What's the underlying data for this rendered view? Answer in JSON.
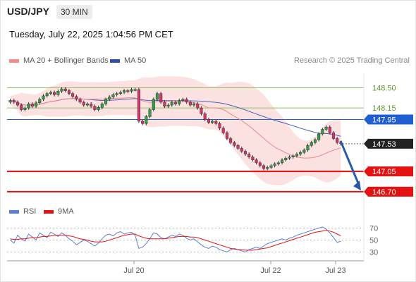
{
  "header": {
    "symbol": "USD/JPY",
    "timeframe": "30 MIN",
    "datetime": "Tuesday, July 22, 2025 1:04:56 PM CET"
  },
  "legend": {
    "ma20_label": "MA 20 + Bollinger Bands",
    "ma50_label": "MA 50",
    "rsi_label": "RSI",
    "rsi_ma_label": "9MA",
    "credit": "Research © 2025 Trading Central"
  },
  "colors": {
    "up": "#2f9e44",
    "down": "#d6336c",
    "candle": "#333333",
    "ma20": "#e88a8a",
    "band_fill": "#fbd7d7",
    "ma50": "#4a62b8",
    "pivot_blue": "#1f5fd1",
    "support_red": "#e51212",
    "resistance_green": "#8cc264",
    "rsi": "#5b7fd6",
    "rsi_ma": "#e51212",
    "arrow": "#2a5aa8"
  },
  "chart_data": [
    {
      "type": "candlestick",
      "y_axis_position": "right",
      "ylim": [
        146.6,
        148.75
      ],
      "x_tick_labels": [
        "Jul 20",
        "Jul 22",
        "Jul 23"
      ],
      "close_values": [
        148.28,
        148.25,
        148.2,
        148.12,
        148.15,
        148.22,
        148.18,
        148.24,
        148.3,
        148.36,
        148.4,
        148.42,
        148.38,
        148.44,
        148.48,
        148.45,
        148.4,
        148.35,
        148.3,
        148.25,
        148.2,
        148.22,
        148.18,
        148.12,
        148.16,
        148.22,
        148.3,
        148.34,
        148.38,
        148.4,
        148.42,
        148.45,
        148.44,
        148.47,
        148.47,
        147.92,
        147.88,
        148.0,
        148.12,
        148.3,
        148.4,
        148.25,
        148.18,
        148.2,
        148.25,
        148.22,
        148.28,
        148.3,
        148.25,
        148.2,
        148.22,
        148.15,
        148.05,
        147.95,
        147.9,
        147.92,
        147.88,
        147.8,
        147.72,
        147.62,
        147.55,
        147.5,
        147.45,
        147.4,
        147.35,
        147.3,
        147.25,
        147.2,
        147.15,
        147.1,
        147.12,
        147.15,
        147.18,
        147.2,
        147.25,
        147.28,
        147.3,
        147.32,
        147.35,
        147.38,
        147.42,
        147.5,
        147.55,
        147.6,
        147.7,
        147.78,
        147.82,
        147.72,
        147.62,
        147.55,
        147.53
      ],
      "lines": [
        {
          "label": "148.50",
          "value": 148.5,
          "kind": "resistance"
        },
        {
          "label": "148.15",
          "value": 148.15,
          "kind": "resistance"
        },
        {
          "label": "147.95",
          "value": 147.95,
          "kind": "pivot"
        },
        {
          "label": "147.53",
          "value": 147.53,
          "kind": "last"
        },
        {
          "label": "147.05",
          "value": 147.05,
          "kind": "support"
        },
        {
          "label": "146.70",
          "value": 146.7,
          "kind": "support"
        }
      ],
      "projection": {
        "from": 147.58,
        "to": 146.72,
        "direction": "down"
      }
    },
    {
      "type": "line",
      "ylim": [
        20,
        80
      ],
      "y_ticks": [
        "70",
        "50",
        "30"
      ],
      "series": [
        {
          "name": "RSI",
          "values": [
            50,
            45,
            58,
            52,
            48,
            60,
            55,
            50,
            62,
            58,
            54,
            63,
            60,
            56,
            62,
            58,
            52,
            48,
            42,
            46,
            50,
            48,
            44,
            40,
            45,
            52,
            58,
            60,
            57,
            62,
            64,
            60,
            62,
            63,
            58,
            36,
            38,
            44,
            52,
            62,
            60,
            54,
            52,
            55,
            58,
            56,
            60,
            58,
            53,
            50,
            52,
            47,
            42,
            38,
            36,
            40,
            38,
            34,
            32,
            30,
            34,
            36,
            34,
            32,
            30,
            34,
            36,
            38,
            36,
            40,
            44,
            46,
            48,
            50,
            52,
            50,
            53,
            55,
            58,
            60,
            62,
            64,
            66,
            68,
            70,
            72,
            68,
            62,
            54,
            46,
            48
          ]
        },
        {
          "name": "9MA",
          "values": [
            52,
            51,
            51,
            52,
            52,
            53,
            54,
            54,
            55,
            56,
            56,
            57,
            58,
            58,
            58,
            58,
            57,
            56,
            54,
            52,
            51,
            50,
            48,
            47,
            47,
            47,
            48,
            50,
            52,
            54,
            56,
            58,
            59,
            60,
            60,
            57,
            55,
            53,
            52,
            52,
            52,
            52,
            52,
            53,
            54,
            55,
            56,
            56,
            56,
            55,
            55,
            54,
            52,
            50,
            48,
            46,
            44,
            42,
            40,
            38,
            36,
            35,
            34,
            34,
            33,
            33,
            33,
            34,
            35,
            36,
            37,
            39,
            41,
            43,
            45,
            47,
            49,
            51,
            53,
            55,
            57,
            59,
            61,
            63,
            64,
            65,
            66,
            65,
            63,
            60,
            57
          ]
        }
      ]
    }
  ]
}
